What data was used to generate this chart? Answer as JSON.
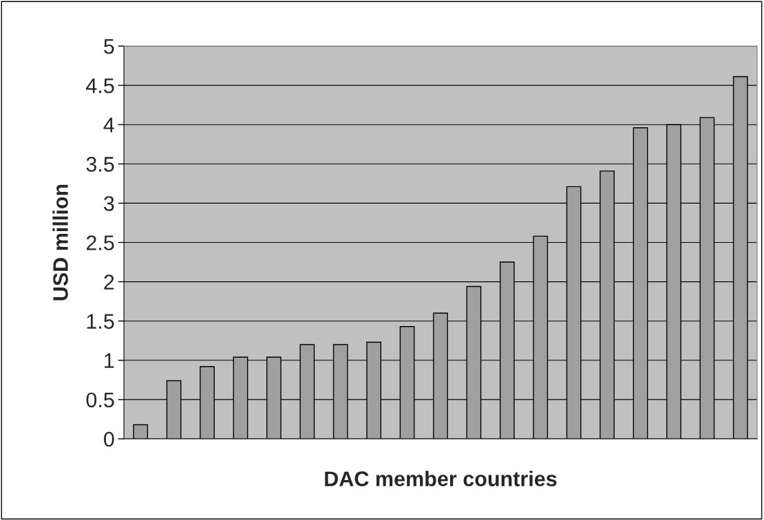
{
  "chart_data": {
    "type": "bar",
    "xlabel": "DAC member countries",
    "ylabel": "USD million",
    "categories": [
      null,
      null,
      null,
      null,
      null,
      null,
      null,
      null,
      null,
      null,
      null,
      null,
      null,
      null,
      null,
      null,
      null,
      null,
      null
    ],
    "values": [
      0.18,
      0.74,
      0.92,
      1.04,
      1.04,
      1.2,
      1.2,
      1.23,
      1.43,
      1.6,
      1.94,
      2.25,
      2.58,
      3.21,
      3.41,
      3.96,
      4.0,
      4.09,
      4.61
    ],
    "color": "#a0a0a0",
    "ylim": [
      0,
      5
    ],
    "yticks": [
      0,
      0.5,
      1,
      1.5,
      2,
      2.5,
      3,
      3.5,
      4,
      4.5,
      5
    ],
    "grid": "y"
  }
}
